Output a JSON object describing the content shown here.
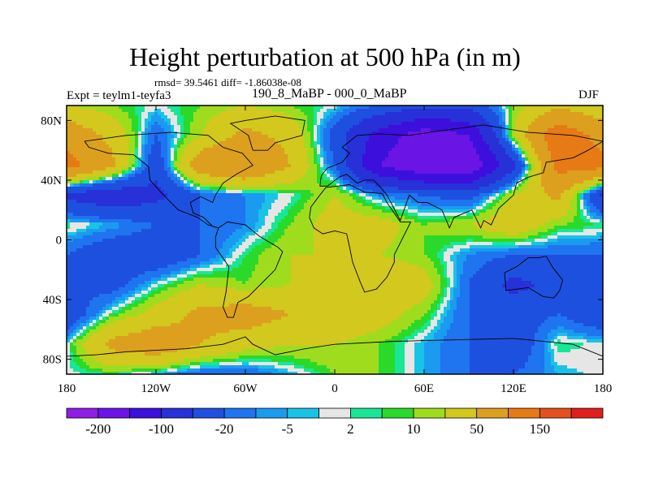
{
  "title": "Height perturbation at 500 hPa (in m)",
  "stats": "rmsd= 39.5461 diff= -1.86038e-08",
  "left_label": "Expt = teylm1-teyfa3",
  "center_label": "190_8_MaBP - 000_0_MaBP",
  "right_label": "DJF",
  "map": {
    "projection": "cylindrical equidistant",
    "lon_range": [
      -180,
      180
    ],
    "lat_range": [
      -90,
      90
    ],
    "lat_ticks": [
      "80N",
      "40N",
      "0",
      "40S",
      "80S"
    ],
    "lon_ticks": [
      "180",
      "120W",
      "60W",
      "0",
      "60E",
      "120E",
      "180"
    ]
  },
  "colorbar": {
    "labels": [
      "-200",
      "-100",
      "-20",
      "-5",
      "2",
      "10",
      "50",
      "150"
    ],
    "colors": [
      "#8f1ee6",
      "#6a14e6",
      "#3c0fdc",
      "#2830d8",
      "#1e50e0",
      "#1f74ef",
      "#1a9bf0",
      "#19c3e6",
      "#e6e6e6",
      "#19e696",
      "#2ad92a",
      "#a0dc1e",
      "#d2c81e",
      "#dca01e",
      "#e67a14",
      "#e4501e",
      "#e11e1e"
    ]
  },
  "chart_data": {
    "type": "heatmap",
    "title": "Height perturbation at 500 hPa (in m)",
    "x_range": [
      -180,
      180
    ],
    "y_range": [
      -90,
      90
    ],
    "levels": [
      -200,
      -100,
      -20,
      -5,
      2,
      10,
      50,
      150
    ],
    "grid_lon": [
      -180,
      -150,
      -120,
      -90,
      -60,
      -30,
      0,
      30,
      60,
      90,
      120,
      150,
      180
    ],
    "grid_lat": [
      -90,
      -70,
      -50,
      -30,
      -10,
      10,
      30,
      50,
      70,
      90
    ],
    "values": [
      [
        0,
        5,
        -5,
        -20,
        -20,
        -5,
        10,
        10,
        -5,
        -20,
        -20,
        -5,
        0
      ],
      [
        0,
        60,
        80,
        50,
        30,
        20,
        20,
        10,
        -5,
        -20,
        -40,
        5,
        0
      ],
      [
        -40,
        5,
        30,
        60,
        70,
        50,
        40,
        30,
        10,
        -20,
        -30,
        -20,
        -40
      ],
      [
        -20,
        -30,
        0,
        20,
        10,
        20,
        40,
        50,
        30,
        -20,
        -60,
        -40,
        -20
      ],
      [
        -20,
        -40,
        -40,
        -20,
        5,
        20,
        20,
        20,
        10,
        -10,
        -20,
        -20,
        -20
      ],
      [
        5,
        -5,
        -20,
        -20,
        -10,
        10,
        30,
        30,
        10,
        20,
        40,
        10,
        5
      ],
      [
        -60,
        -80,
        -60,
        -20,
        -10,
        0,
        20,
        -10,
        -20,
        -30,
        20,
        60,
        -60
      ],
      [
        120,
        60,
        -40,
        80,
        100,
        50,
        -20,
        -150,
        -200,
        -200,
        -60,
        120,
        120
      ],
      [
        80,
        40,
        -20,
        20,
        60,
        40,
        -30,
        -120,
        -180,
        -150,
        20,
        140,
        80
      ],
      [
        20,
        10,
        0,
        10,
        20,
        10,
        0,
        -20,
        -40,
        -40,
        10,
        40,
        20
      ]
    ]
  }
}
